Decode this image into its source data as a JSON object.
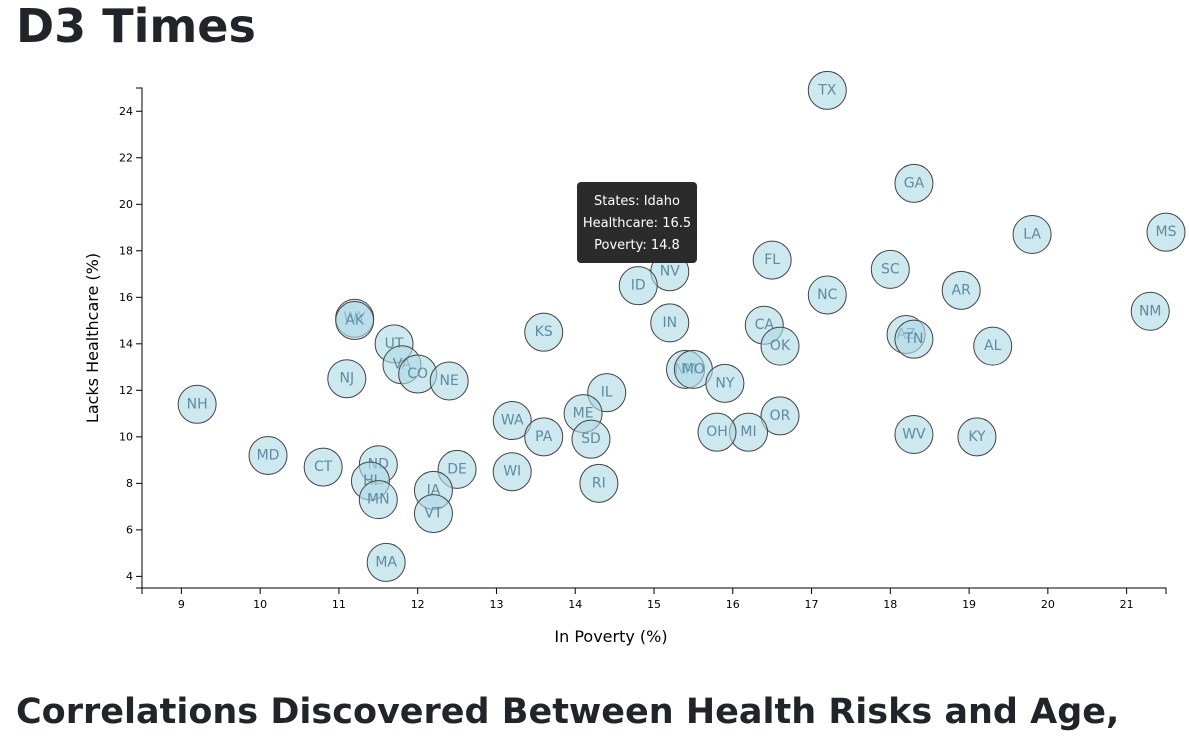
{
  "page": {
    "title": "D3 Times",
    "section_heading": "Correlations Discovered Between Health Risks and Age,"
  },
  "tooltip": {
    "states_line": "States: Idaho",
    "healthcare_line": "Healthcare: 16.5",
    "poverty_line": "Poverty: 14.8"
  },
  "colors": {
    "circle_fill": "#add8e6",
    "circle_stroke": "#444444",
    "label_text": "#5f8aa0",
    "tooltip_bg": "#2b2b2b"
  },
  "chart_data": {
    "type": "scatter",
    "title": "",
    "xlabel": "In Poverty (%)",
    "ylabel": "Lacks Healthcare (%)",
    "xlim": [
      8.5,
      21.5
    ],
    "ylim": [
      3.5,
      25
    ],
    "xticks": [
      9,
      10,
      11,
      12,
      13,
      14,
      15,
      16,
      17,
      18,
      19,
      20,
      21
    ],
    "yticks": [
      4,
      6,
      8,
      10,
      12,
      14,
      16,
      18,
      20,
      22,
      24
    ],
    "grid": false,
    "points": [
      {
        "abbr": "TX",
        "x": 17.2,
        "y": 24.9
      },
      {
        "abbr": "GA",
        "x": 18.3,
        "y": 20.9
      },
      {
        "abbr": "LA",
        "x": 19.8,
        "y": 18.7
      },
      {
        "abbr": "MS",
        "x": 21.5,
        "y": 18.8
      },
      {
        "abbr": "FL",
        "x": 16.5,
        "y": 17.6
      },
      {
        "abbr": "NV",
        "x": 15.2,
        "y": 17.1
      },
      {
        "abbr": "SC",
        "x": 18.0,
        "y": 17.2
      },
      {
        "abbr": "ID",
        "x": 14.8,
        "y": 16.5
      },
      {
        "abbr": "AR",
        "x": 18.9,
        "y": 16.3
      },
      {
        "abbr": "NC",
        "x": 17.2,
        "y": 16.1
      },
      {
        "abbr": "NM",
        "x": 21.3,
        "y": 15.4
      },
      {
        "abbr": "WY",
        "x": 11.2,
        "y": 15.1
      },
      {
        "abbr": "AK",
        "x": 11.2,
        "y": 15.0
      },
      {
        "abbr": "KS",
        "x": 13.6,
        "y": 14.5
      },
      {
        "abbr": "IN",
        "x": 15.2,
        "y": 14.9
      },
      {
        "abbr": "CA",
        "x": 16.4,
        "y": 14.8
      },
      {
        "abbr": "AZ",
        "x": 18.2,
        "y": 14.4
      },
      {
        "abbr": "TN",
        "x": 18.3,
        "y": 14.2
      },
      {
        "abbr": "UT",
        "x": 11.7,
        "y": 14.0
      },
      {
        "abbr": "OK",
        "x": 16.6,
        "y": 13.9
      },
      {
        "abbr": "AL",
        "x": 19.3,
        "y": 13.9
      },
      {
        "abbr": "VA",
        "x": 11.8,
        "y": 13.1
      },
      {
        "abbr": "CO",
        "x": 12.0,
        "y": 12.7
      },
      {
        "abbr": "NM2",
        "x": 15.4,
        "y": 12.9
      },
      {
        "abbr": "MO",
        "x": 15.5,
        "y": 12.9
      },
      {
        "abbr": "NJ",
        "x": 11.1,
        "y": 12.5
      },
      {
        "abbr": "NE",
        "x": 12.4,
        "y": 12.4
      },
      {
        "abbr": "NY",
        "x": 15.9,
        "y": 12.3
      },
      {
        "abbr": "IL",
        "x": 14.4,
        "y": 11.9
      },
      {
        "abbr": "NH",
        "x": 9.2,
        "y": 11.4
      },
      {
        "abbr": "ME",
        "x": 14.1,
        "y": 11.0
      },
      {
        "abbr": "OR",
        "x": 16.6,
        "y": 10.9
      },
      {
        "abbr": "WA",
        "x": 13.2,
        "y": 10.7
      },
      {
        "abbr": "MI",
        "x": 16.2,
        "y": 10.2
      },
      {
        "abbr": "OH",
        "x": 15.8,
        "y": 10.2
      },
      {
        "abbr": "WV",
        "x": 18.3,
        "y": 10.1
      },
      {
        "abbr": "PA",
        "x": 13.6,
        "y": 10.0
      },
      {
        "abbr": "KY",
        "x": 19.1,
        "y": 10.0
      },
      {
        "abbr": "SD",
        "x": 14.2,
        "y": 9.9
      },
      {
        "abbr": "MD",
        "x": 10.1,
        "y": 9.2
      },
      {
        "abbr": "ND",
        "x": 11.5,
        "y": 8.8
      },
      {
        "abbr": "CT",
        "x": 10.8,
        "y": 8.7
      },
      {
        "abbr": "DE",
        "x": 12.5,
        "y": 8.6
      },
      {
        "abbr": "WI",
        "x": 13.2,
        "y": 8.5
      },
      {
        "abbr": "HI",
        "x": 11.4,
        "y": 8.1
      },
      {
        "abbr": "RI",
        "x": 14.3,
        "y": 8.0
      },
      {
        "abbr": "IA",
        "x": 12.2,
        "y": 7.7
      },
      {
        "abbr": "MN",
        "x": 11.5,
        "y": 7.3
      },
      {
        "abbr": "VT",
        "x": 12.2,
        "y": 6.7
      },
      {
        "abbr": "MA",
        "x": 11.6,
        "y": 4.6
      }
    ]
  }
}
